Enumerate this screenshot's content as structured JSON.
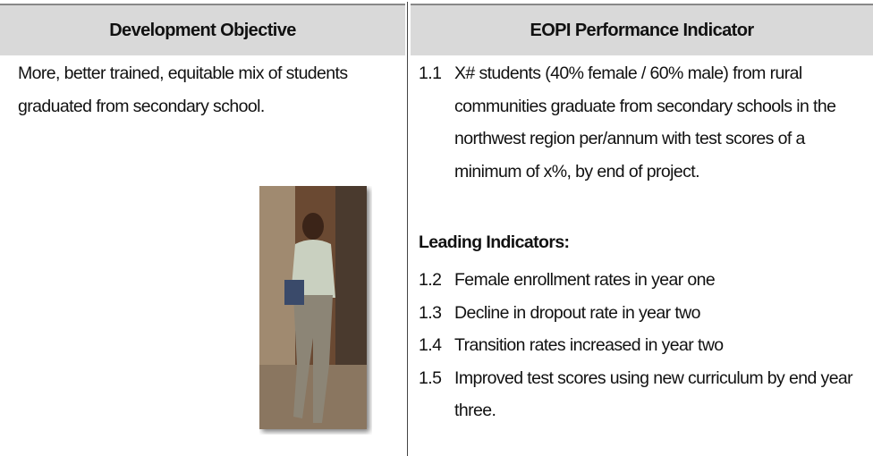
{
  "table": {
    "headers": [
      "Development Objective",
      "EOPI Performance Indicator"
    ],
    "objective": "More, better trained, equitable mix of students graduated from secondary school.",
    "main_indicator": {
      "number": "1.1",
      "text": "X# students (40% female / 60% male) from rural communities graduate from secondary schools in the northwest region per/annum with test scores of a minimum of x%, by end of project."
    },
    "leading_heading": "Leading Indicators:",
    "leading": [
      {
        "number": "1.2",
        "text": "Female enrollment rates in year one"
      },
      {
        "number": "1.3",
        "text": "Decline in dropout rate in year two"
      },
      {
        "number": "1.4",
        "text": "Transition rates increased in year two"
      },
      {
        "number": "1.5",
        "text": "Improved test scores using new curriculum by end year three."
      }
    ]
  }
}
